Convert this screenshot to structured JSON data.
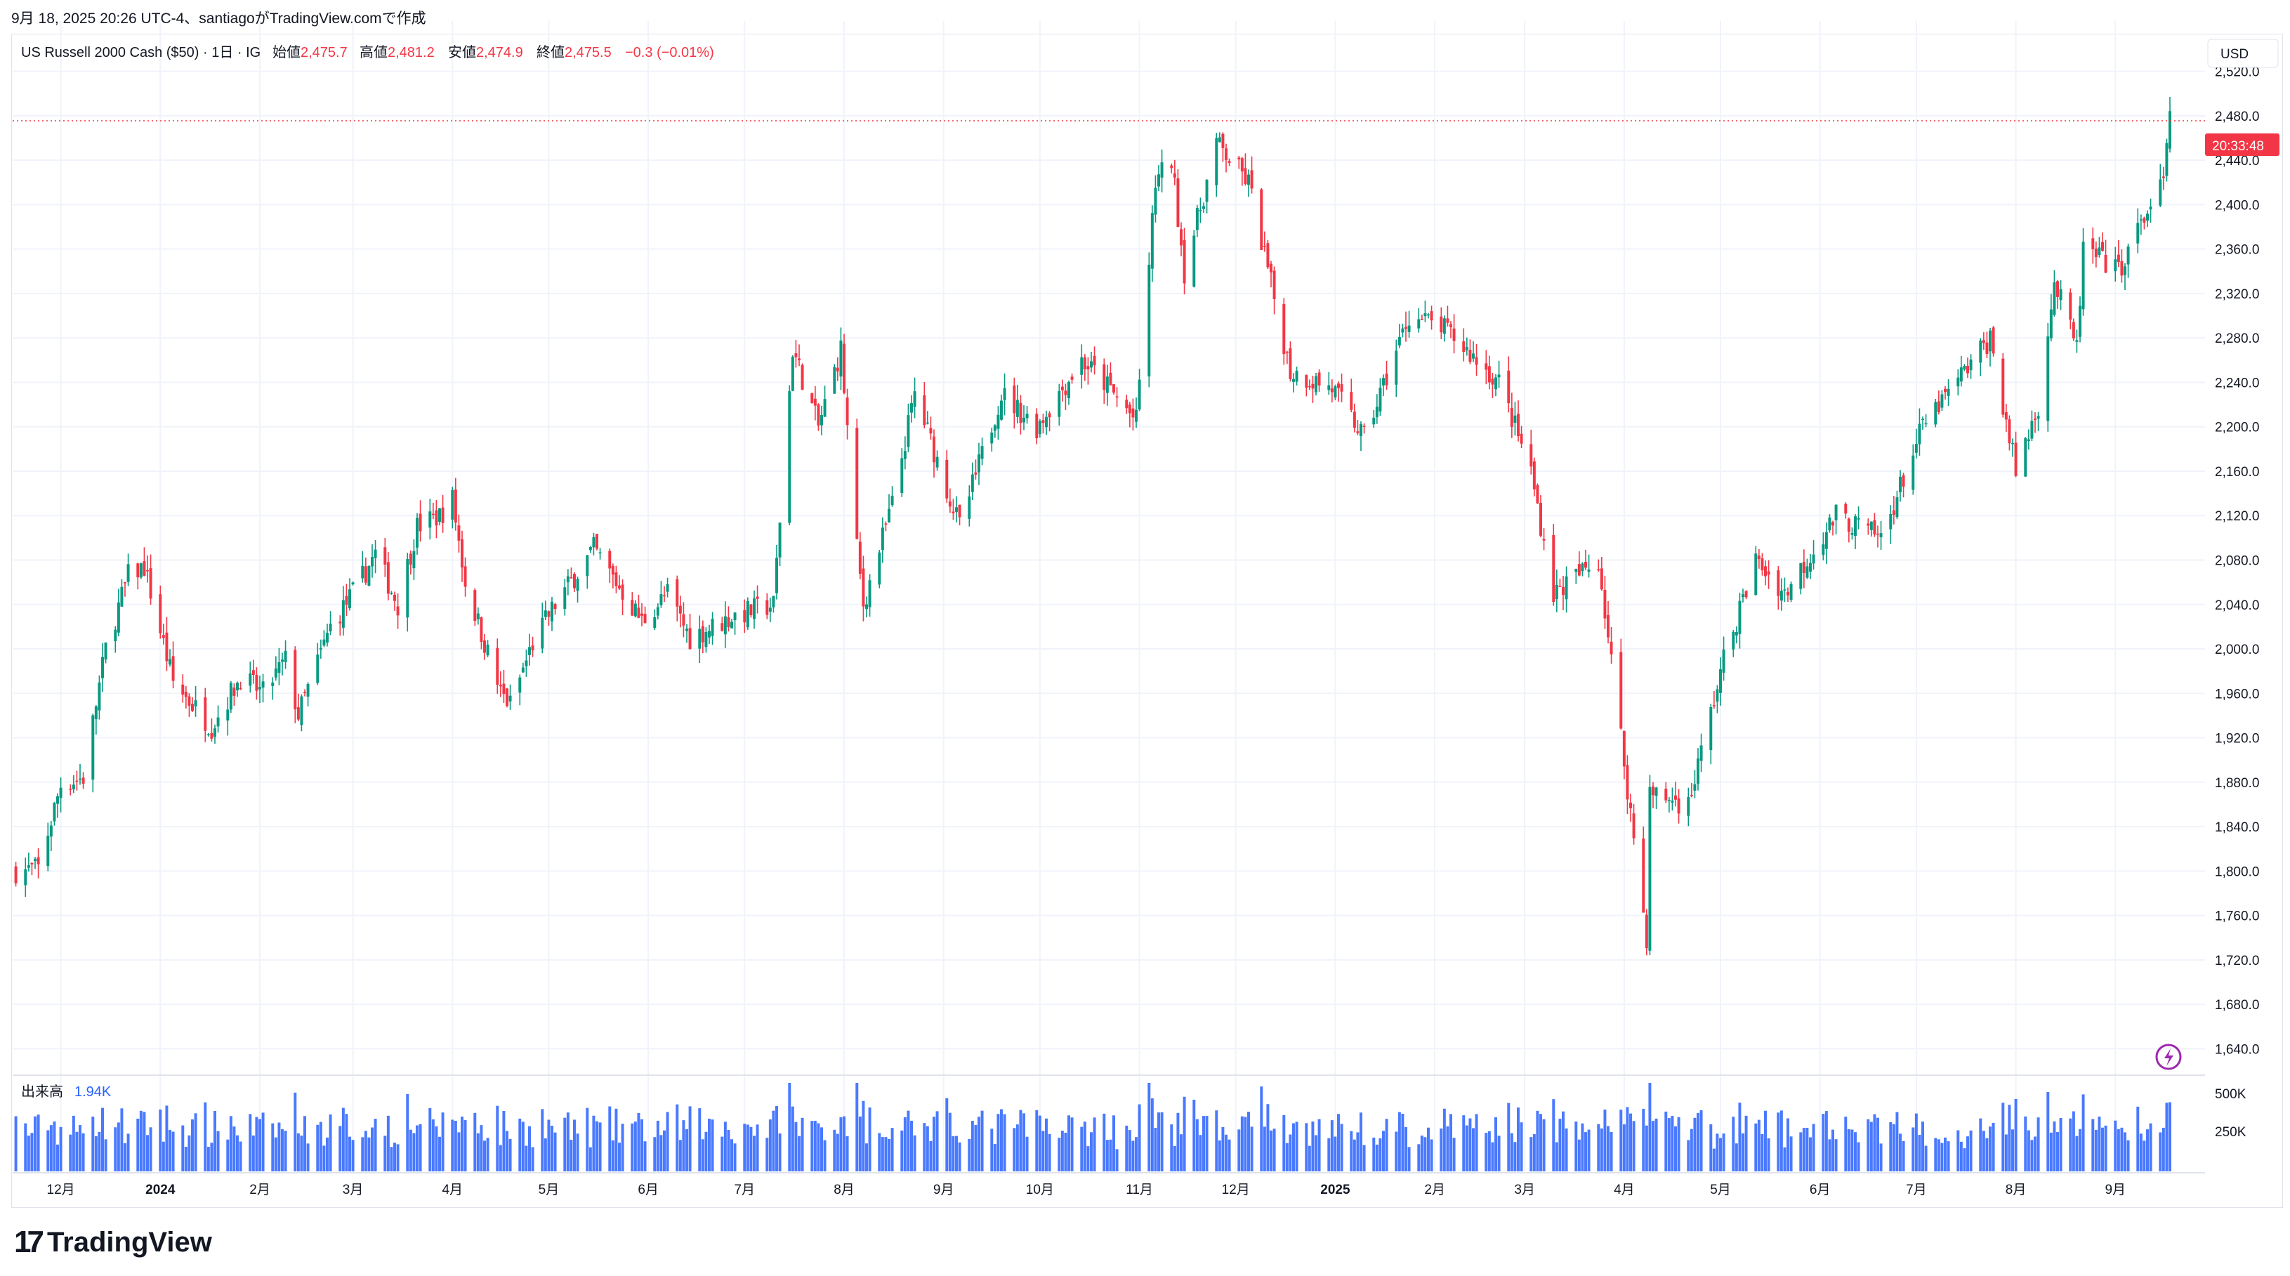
{
  "header": {
    "caption": "9月 18, 2025 20:26 UTC-4、santiagoがTradingView.comで作成",
    "symbol": "US Russell 2000 Cash ($50) · 1日 · IG",
    "open_label": "始値",
    "open": "2,475.7",
    "high_label": "高値",
    "high": "2,481.2",
    "low_label": "安値",
    "low": "2,474.9",
    "close_label": "終値",
    "close": "2,475.5",
    "change": "−0.3 (−0.01%)"
  },
  "currency": "USD",
  "last_price_tag": {
    "time": "20:33:48",
    "value": 2475.5
  },
  "volume_pane": {
    "label": "出来高",
    "value": "1.94K",
    "ticks": [
      "500K",
      "250K"
    ]
  },
  "brand": {
    "logo_glyph": "17",
    "name": "TradingView"
  },
  "colors": {
    "up": "#089981",
    "down": "#f23645",
    "volume": "#2962ff",
    "grid": "#f0f3fa",
    "tag": "#f23645"
  },
  "chart_data": {
    "type": "candlestick",
    "title": "US Russell 2000 Cash ($50)",
    "interval": "1日",
    "ylim": [
      1620,
      2540
    ],
    "y_ticks": [
      "2,520.0",
      "2,480.0",
      "2,440.0",
      "2,400.0",
      "2,360.0",
      "2,320.0",
      "2,280.0",
      "2,240.0",
      "2,200.0",
      "2,160.0",
      "2,120.0",
      "2,080.0",
      "2,040.0",
      "2,000.0",
      "1,960.0",
      "1,920.0",
      "1,880.0",
      "1,840.0",
      "1,800.0",
      "1,760.0",
      "1,720.0",
      "1,680.0",
      "1,640.0"
    ],
    "x_ticks": [
      {
        "label": "12月",
        "date": "2023-12-01"
      },
      {
        "label": "2024",
        "date": "2024-01-01"
      },
      {
        "label": "2月",
        "date": "2024-02-01"
      },
      {
        "label": "3月",
        "date": "2024-03-01"
      },
      {
        "label": "4月",
        "date": "2024-04-01"
      },
      {
        "label": "5月",
        "date": "2024-05-01"
      },
      {
        "label": "6月",
        "date": "2024-06-01"
      },
      {
        "label": "7月",
        "date": "2024-07-01"
      },
      {
        "label": "8月",
        "date": "2024-08-01"
      },
      {
        "label": "9月",
        "date": "2024-09-01"
      },
      {
        "label": "10月",
        "date": "2024-10-01"
      },
      {
        "label": "11月",
        "date": "2024-11-01"
      },
      {
        "label": "12月",
        "date": "2024-12-01"
      },
      {
        "label": "2025",
        "date": "2025-01-01"
      },
      {
        "label": "2月",
        "date": "2025-02-01"
      },
      {
        "label": "3月",
        "date": "2025-03-01"
      },
      {
        "label": "4月",
        "date": "2025-04-01"
      },
      {
        "label": "5月",
        "date": "2025-05-01"
      },
      {
        "label": "6月",
        "date": "2025-06-01"
      },
      {
        "label": "7月",
        "date": "2025-07-01"
      },
      {
        "label": "8月",
        "date": "2025-08-01"
      },
      {
        "label": "9月",
        "date": "2025-09-01"
      }
    ],
    "x_range": [
      "2023-11-16",
      "2025-09-18"
    ],
    "close_path": [
      {
        "date": "2023-11-17",
        "close": 1800
      },
      {
        "date": "2023-11-24",
        "close": 1802
      },
      {
        "date": "2023-12-01",
        "close": 1878
      },
      {
        "date": "2023-12-08",
        "close": 1884
      },
      {
        "date": "2023-12-15",
        "close": 2000
      },
      {
        "date": "2023-12-22",
        "close": 2066
      },
      {
        "date": "2023-12-27",
        "close": 2074
      },
      {
        "date": "2024-01-05",
        "close": 1970
      },
      {
        "date": "2024-01-17",
        "close": 1930
      },
      {
        "date": "2024-01-26",
        "close": 1975
      },
      {
        "date": "2024-02-02",
        "close": 1960
      },
      {
        "date": "2024-02-09",
        "close": 1990
      },
      {
        "date": "2024-02-13",
        "close": 1940
      },
      {
        "date": "2024-02-23",
        "close": 2020
      },
      {
        "date": "2024-03-01",
        "close": 2050
      },
      {
        "date": "2024-03-08",
        "close": 2085
      },
      {
        "date": "2024-03-15",
        "close": 2040
      },
      {
        "date": "2024-03-21",
        "close": 2110
      },
      {
        "date": "2024-03-28",
        "close": 2120
      },
      {
        "date": "2024-04-01",
        "close": 2135
      },
      {
        "date": "2024-04-05",
        "close": 2060
      },
      {
        "date": "2024-04-16",
        "close": 1960
      },
      {
        "date": "2024-04-19",
        "close": 1950
      },
      {
        "date": "2024-04-26",
        "close": 2005
      },
      {
        "date": "2024-05-03",
        "close": 2040
      },
      {
        "date": "2024-05-15",
        "close": 2090
      },
      {
        "date": "2024-05-22",
        "close": 2060
      },
      {
        "date": "2024-05-30",
        "close": 2025
      },
      {
        "date": "2024-06-07",
        "close": 2050
      },
      {
        "date": "2024-06-14",
        "close": 2010
      },
      {
        "date": "2024-06-28",
        "close": 2030
      },
      {
        "date": "2024-07-10",
        "close": 2040
      },
      {
        "date": "2024-07-16",
        "close": 2270
      },
      {
        "date": "2024-07-24",
        "close": 2200
      },
      {
        "date": "2024-07-31",
        "close": 2270
      },
      {
        "date": "2024-08-05",
        "close": 2090
      },
      {
        "date": "2024-08-07",
        "close": 2040
      },
      {
        "date": "2024-08-16",
        "close": 2130
      },
      {
        "date": "2024-08-23",
        "close": 2230
      },
      {
        "date": "2024-09-06",
        "close": 2110
      },
      {
        "date": "2024-09-19",
        "close": 2230
      },
      {
        "date": "2024-09-30",
        "close": 2200
      },
      {
        "date": "2024-10-14",
        "close": 2260
      },
      {
        "date": "2024-10-21",
        "close": 2240
      },
      {
        "date": "2024-10-31",
        "close": 2205
      },
      {
        "date": "2024-11-06",
        "close": 2420
      },
      {
        "date": "2024-11-11",
        "close": 2440
      },
      {
        "date": "2024-11-15",
        "close": 2340
      },
      {
        "date": "2024-11-25",
        "close": 2455
      },
      {
        "date": "2024-12-05",
        "close": 2420
      },
      {
        "date": "2024-12-18",
        "close": 2250
      },
      {
        "date": "2024-12-31",
        "close": 2235
      },
      {
        "date": "2025-01-10",
        "close": 2190
      },
      {
        "date": "2025-01-24",
        "close": 2300
      },
      {
        "date": "2025-02-03",
        "close": 2290
      },
      {
        "date": "2025-02-07",
        "close": 2280
      },
      {
        "date": "2025-02-21",
        "close": 2240
      },
      {
        "date": "2025-03-03",
        "close": 2160
      },
      {
        "date": "2025-03-10",
        "close": 2050
      },
      {
        "date": "2025-03-24",
        "close": 2080
      },
      {
        "date": "2025-04-04",
        "close": 1830
      },
      {
        "date": "2025-04-08",
        "close": 1740
      },
      {
        "date": "2025-04-09",
        "close": 1870
      },
      {
        "date": "2025-04-21",
        "close": 1860
      },
      {
        "date": "2025-05-02",
        "close": 1990
      },
      {
        "date": "2025-05-12",
        "close": 2080
      },
      {
        "date": "2025-05-21",
        "close": 2050
      },
      {
        "date": "2025-06-06",
        "close": 2120
      },
      {
        "date": "2025-06-20",
        "close": 2100
      },
      {
        "date": "2025-07-03",
        "close": 2200
      },
      {
        "date": "2025-07-11",
        "close": 2230
      },
      {
        "date": "2025-07-24",
        "close": 2280
      },
      {
        "date": "2025-08-01",
        "close": 2160
      },
      {
        "date": "2025-08-08",
        "close": 2220
      },
      {
        "date": "2025-08-13",
        "close": 2330
      },
      {
        "date": "2025-08-20",
        "close": 2270
      },
      {
        "date": "2025-08-22",
        "close": 2360
      },
      {
        "date": "2025-09-02",
        "close": 2340
      },
      {
        "date": "2025-09-12",
        "close": 2400
      },
      {
        "date": "2025-09-16",
        "close": 2420
      },
      {
        "date": "2025-09-18",
        "close": 2475
      }
    ],
    "volume_ylim": [
      0,
      500000
    ]
  }
}
